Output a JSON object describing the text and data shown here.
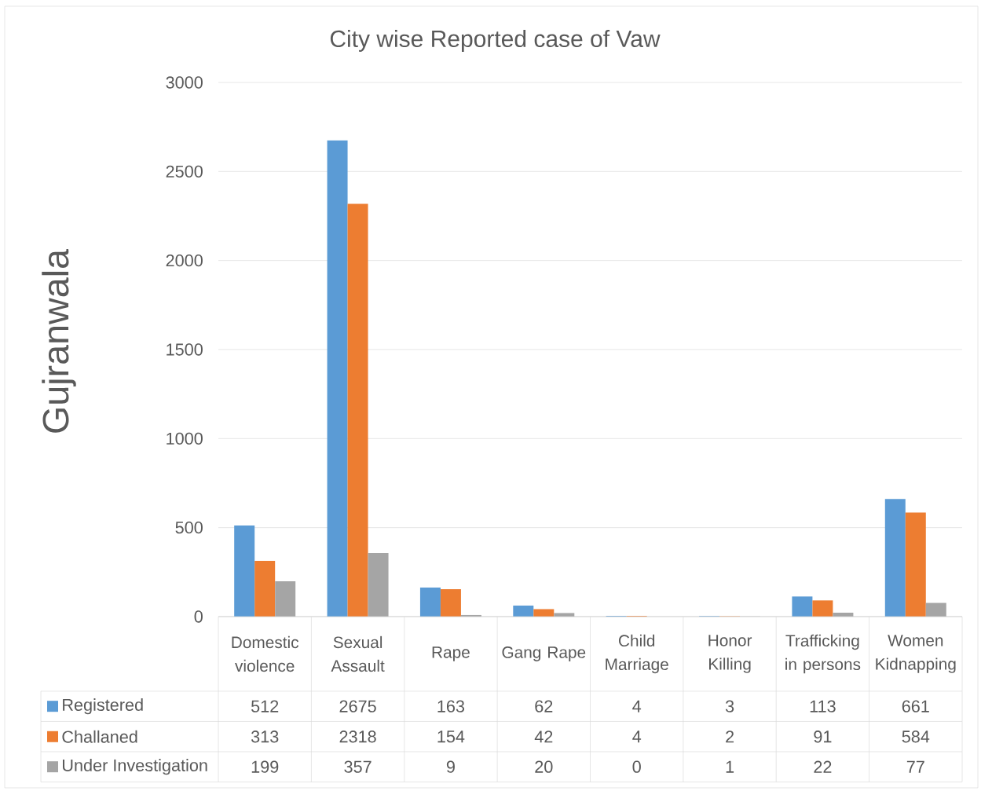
{
  "chart_data": {
    "type": "bar",
    "title": "City wise Reported case of Vaw",
    "ylabel": "Gujranwala",
    "categories": [
      "Domestic violence",
      "Sexual Assault",
      "Rape",
      "Gang Rape",
      "Child Marriage",
      "Honor Killing",
      "Trafficking in persons",
      "Women Kidnapping"
    ],
    "series": [
      {
        "name": "Registered",
        "color": "#5b9bd5",
        "values": [
          512,
          2675,
          163,
          62,
          4,
          3,
          113,
          661
        ]
      },
      {
        "name": "Challaned",
        "color": "#ed7d31",
        "values": [
          313,
          2318,
          154,
          42,
          4,
          2,
          91,
          584
        ]
      },
      {
        "name": "Under Investigation",
        "color": "#a5a5a5",
        "values": [
          199,
          357,
          9,
          20,
          0,
          1,
          22,
          77
        ]
      }
    ],
    "ylim": [
      0,
      3000
    ],
    "yticks": [
      0,
      500,
      1000,
      1500,
      2000,
      2500,
      3000
    ],
    "grid": "y",
    "legend": "bottom",
    "data_labels": true
  }
}
